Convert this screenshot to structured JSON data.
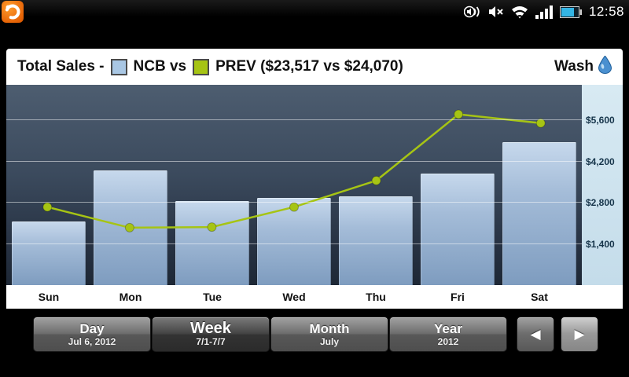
{
  "statusbar": {
    "time": "12:58"
  },
  "header": {
    "title": "Total Sales -",
    "series1_label": "NCB vs",
    "series2_label": "PREV ($23,517 vs $24,070)",
    "right_label": "Wash",
    "series1_color": "#a9c7e4",
    "series2_color": "#a6c414"
  },
  "chart_data": {
    "type": "bar",
    "categories": [
      "Sun",
      "Mon",
      "Tue",
      "Wed",
      "Thu",
      "Fri",
      "Sat"
    ],
    "series": [
      {
        "name": "NCB",
        "type": "bar",
        "total_display": "$23,517",
        "values": [
          2150,
          3900,
          2850,
          2950,
          3017,
          3800,
          4850
        ]
      },
      {
        "name": "PREV",
        "type": "line",
        "total_display": "$24,070",
        "values": [
          2650,
          1950,
          1970,
          2650,
          3550,
          5800,
          5500
        ]
      }
    ],
    "y_ticks": [
      1400,
      2800,
      4200,
      5600
    ],
    "y_tick_labels": [
      "$1,400",
      "$2,800",
      "$4,200",
      "$5,600"
    ],
    "ylim": [
      0,
      6800
    ],
    "grid": true,
    "legend_position": "top",
    "bar_color": "#a4bcd8",
    "line_color": "#a6c414"
  },
  "toolbar": {
    "buttons": [
      {
        "label": "Day",
        "sub": "Jul 6, 2012"
      },
      {
        "label": "Week",
        "sub": "7/1-7/7"
      },
      {
        "label": "Month",
        "sub": "July"
      },
      {
        "label": "Year",
        "sub": "2012"
      }
    ],
    "selected": "Week",
    "prev_label": "◀",
    "next_label": "▶"
  }
}
